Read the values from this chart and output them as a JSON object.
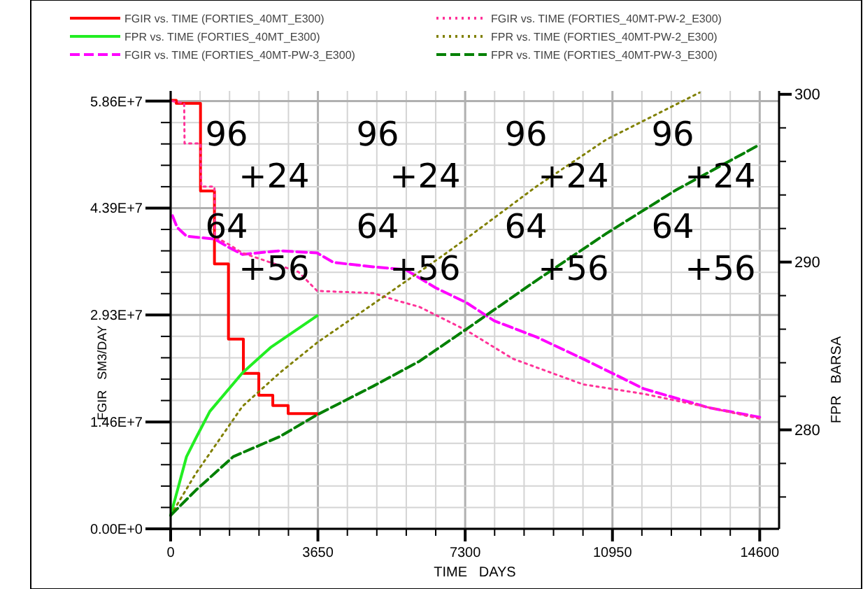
{
  "chart_data": {
    "type": "line",
    "xlabel": "TIME   DAYS",
    "ylabel": "FGIR   SM3/DAY",
    "y2label": "FPR   BARSA",
    "xlim": [
      0,
      15080
    ],
    "xticks": [
      0,
      {
        "value": 730,
        "label": null
      },
      {
        "value": 1460,
        "label": null
      },
      {
        "value": 2190,
        "label": null
      },
      {
        "value": 2920,
        "label": null
      },
      3650,
      {
        "value": 4380,
        "label": null
      },
      {
        "value": 5110,
        "label": null
      },
      {
        "value": 5840,
        "label": null
      },
      {
        "value": 6570,
        "label": null
      },
      7300,
      {
        "value": 8030,
        "label": null
      },
      {
        "value": 8760,
        "label": null
      },
      {
        "value": 9490,
        "label": null
      },
      {
        "value": 10220,
        "label": null
      },
      10950,
      {
        "value": 11680,
        "label": null
      },
      {
        "value": 12410,
        "label": null
      },
      {
        "value": 13140,
        "label": null
      },
      {
        "value": 13870,
        "label": null
      },
      14600
    ],
    "ylim": [
      0,
      60000000
    ],
    "yticks": [
      {
        "value": 0,
        "label": "0.00E+0"
      },
      {
        "value": 2930000,
        "label": null
      },
      {
        "value": 5860000,
        "label": null
      },
      {
        "value": 8790000,
        "label": null
      },
      {
        "value": 11720000,
        "label": null
      },
      {
        "value": 14650000,
        "label": "1.46E+7"
      },
      {
        "value": 17580000,
        "label": null
      },
      {
        "value": 20510000,
        "label": null
      },
      {
        "value": 23440000,
        "label": null
      },
      {
        "value": 26370000,
        "label": null
      },
      {
        "value": 29300000,
        "label": "2.93E+7"
      },
      {
        "value": 32230000,
        "label": null
      },
      {
        "value": 35160000,
        "label": null
      },
      {
        "value": 38090000,
        "label": null
      },
      {
        "value": 41020000,
        "label": null
      },
      {
        "value": 43950000,
        "label": "4.39E+7"
      },
      {
        "value": 46880000,
        "label": null
      },
      {
        "value": 49810000,
        "label": null
      },
      {
        "value": 52740000,
        "label": null
      },
      {
        "value": 55670000,
        "label": null
      },
      {
        "value": 58600000,
        "label": "5.86E+7"
      }
    ],
    "y2lim": [
      274.1,
      300.2
    ],
    "y2ticks": [
      {
        "value": 276,
        "label": null
      },
      {
        "value": 278,
        "label": null
      },
      280,
      {
        "value": 282,
        "label": null
      },
      {
        "value": 284,
        "label": null
      },
      {
        "value": 286,
        "label": null
      },
      {
        "value": 288,
        "label": null
      },
      290,
      {
        "value": 292,
        "label": null
      },
      {
        "value": 294,
        "label": null
      },
      {
        "value": 296,
        "label": null
      },
      {
        "value": 298,
        "label": null
      },
      300
    ],
    "grid": true,
    "legend": "top",
    "series": [
      {
        "name": "FGIR vs. TIME (FORTIES_40MT_E300)",
        "type": "step",
        "color": "#ff0000",
        "line_style": "solid",
        "x": [
          0,
          139,
          740,
          1086,
          1433,
          1803,
          2185,
          2532,
          2913,
          3631
        ],
        "values": [
          58700000,
          58300000,
          46300000,
          36300000,
          26000000,
          21300000,
          18300000,
          16900000,
          15800000,
          15700000
        ]
      },
      {
        "name": "FPR vs. TIME (FORTIES_40MT_E300)",
        "type": "line",
        "axis": "y2",
        "color": "#22ee22",
        "line_style": "solid",
        "x": [
          0,
          393,
          624,
          971,
          1780,
          2473,
          3631
        ],
        "values": [
          274.9,
          278.4,
          279.5,
          281.1,
          283.4,
          284.9,
          286.8
        ]
      },
      {
        "name": "FGIR vs. TIME (FORTIES_40MT-PW-3_E300)",
        "type": "line",
        "color": "#ff00ff",
        "line_style": "dashed",
        "x": [
          46,
          162,
          393,
          1086,
          1433,
          1780,
          2705,
          3631,
          4035,
          5018,
          5826,
          6578,
          7328,
          8021,
          9062,
          10218,
          11028,
          11722,
          12530,
          13340,
          14600
        ],
        "values": [
          42900000,
          41300000,
          40100000,
          39700000,
          38600000,
          37600000,
          38100000,
          37800000,
          36500000,
          35900000,
          35500000,
          33000000,
          31000000,
          28500000,
          26300000,
          23300000,
          21100000,
          19200000,
          17900000,
          16600000,
          15300000
        ]
      },
      {
        "name": "FGIR vs. TIME (FORTIES_40MT-PW-2_E300)",
        "type": "line",
        "color": "#ff3399",
        "line_style": "dotted",
        "x": [
          46,
          335,
          345,
          740,
          760,
          1086,
          1100,
          1433,
          1780,
          2473,
          3169,
          3631,
          5018,
          5595,
          6173,
          7328,
          8484,
          10218,
          11722,
          13108,
          14600
        ],
        "values": [
          58600000,
          58300000,
          52800000,
          52800000,
          46900000,
          46900000,
          40000000,
          39000000,
          37800000,
          36500000,
          35200000,
          32600000,
          32300000,
          31300000,
          30400000,
          27200000,
          23300000,
          19800000,
          18500000,
          16900000,
          15100000
        ]
      },
      {
        "name": "FPR vs. TIME (FORTIES_40MT-PW-2_E300)",
        "type": "line",
        "axis": "y2",
        "color": "#808000",
        "line_style": "dotted",
        "x": [
          0,
          624,
          1780,
          2705,
          3631,
          5018,
          6636,
          7328,
          9062,
          10796,
          13108
        ],
        "values": [
          274.9,
          277.4,
          281.4,
          283.4,
          285.2,
          287.5,
          290.2,
          291.4,
          294.5,
          297.3,
          300.1
        ]
      },
      {
        "name": "FPR vs. TIME (FORTIES_40MT-PW-3_E300)",
        "type": "line",
        "axis": "y2",
        "color": "#008000",
        "line_style": "dashed",
        "x": [
          0,
          624,
          1549,
          2705,
          3631,
          5018,
          6173,
          7328,
          9062,
          10796,
          12530,
          14600
        ],
        "values": [
          274.9,
          276.4,
          278.4,
          279.6,
          280.9,
          282.6,
          284.1,
          286.0,
          288.9,
          291.7,
          294.3,
          297.0
        ]
      }
    ],
    "annotations": [
      "96",
      "+24",
      "64",
      "+56",
      "96",
      "+24",
      "64",
      "+56",
      "96",
      "+24",
      "64",
      "+56",
      "96",
      "+24",
      "64",
      "+56"
    ]
  }
}
